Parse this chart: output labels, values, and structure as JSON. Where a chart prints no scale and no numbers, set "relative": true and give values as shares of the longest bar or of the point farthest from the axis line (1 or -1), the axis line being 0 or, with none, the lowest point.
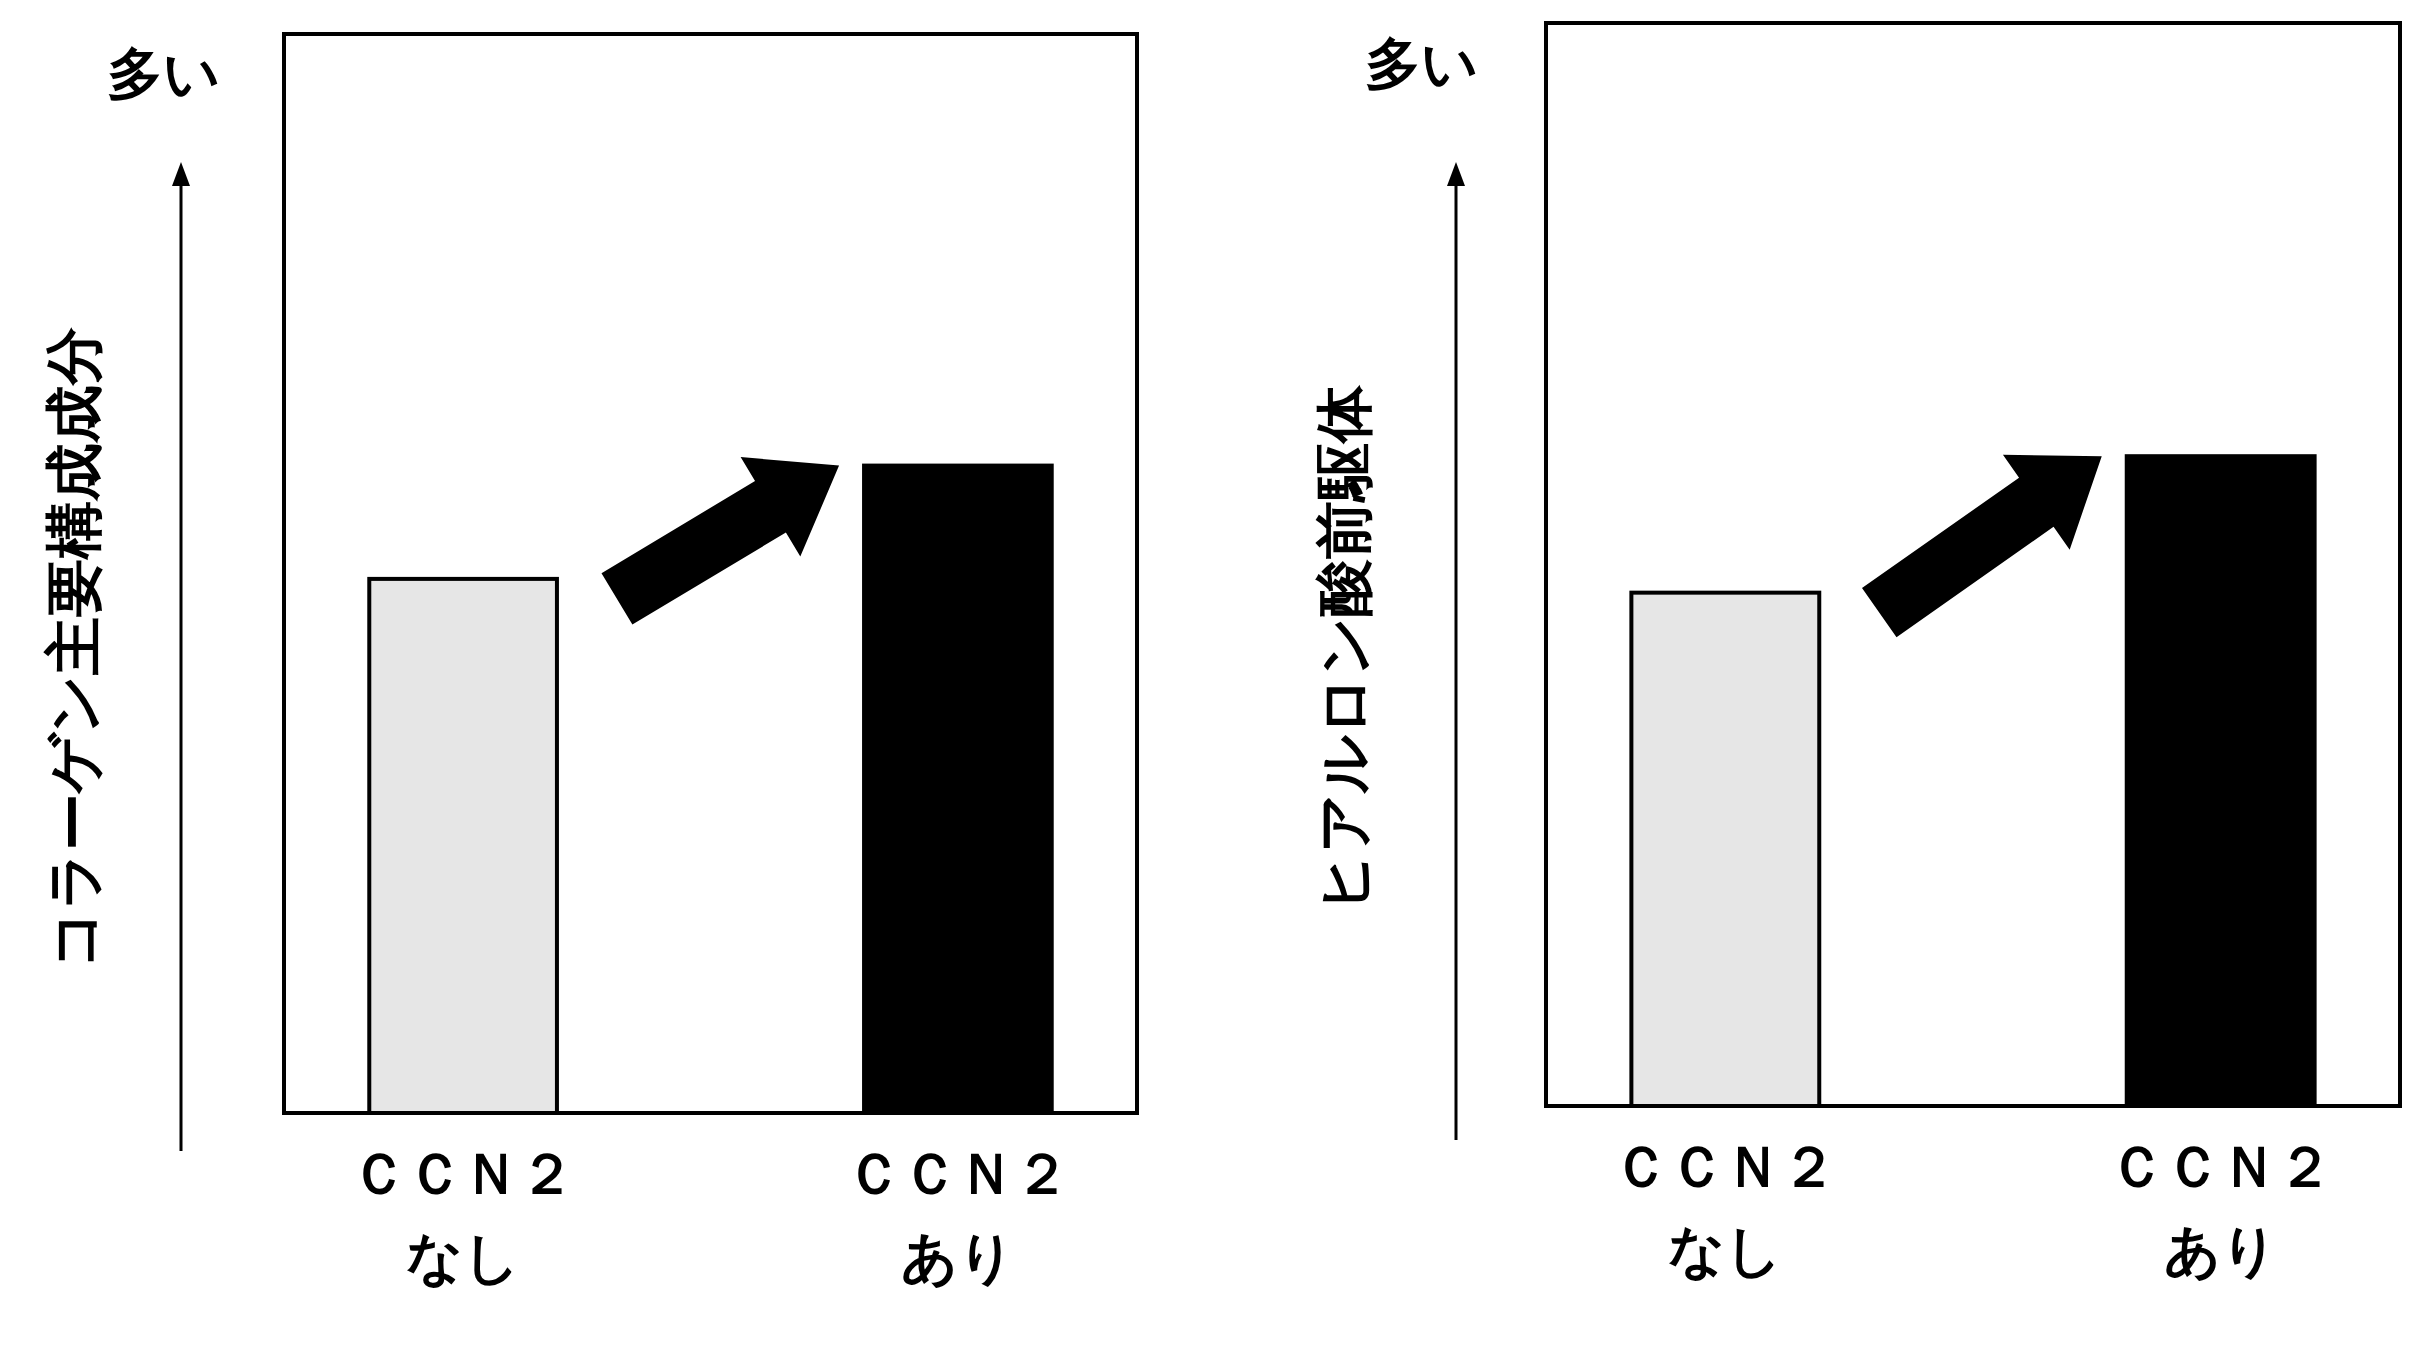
{
  "chart_data": [
    {
      "type": "bar",
      "relative": true,
      "ylabel": "コラーゲン主要構成成分",
      "annotations": [
        "多い"
      ],
      "categories": [
        "ＣＣＮ２なし",
        "ＣＣＮ２あり"
      ],
      "values": [
        0.825,
        1
      ],
      "colors": [
        "#e6e6e6",
        "#000000"
      ]
    },
    {
      "type": "bar",
      "relative": true,
      "ylabel": "ヒアルロン酸前駆体",
      "annotations": [
        "多い"
      ],
      "categories": [
        "ＣＣＮ２なし",
        "ＣＣＮ２あり"
      ],
      "values": [
        0.79,
        1
      ],
      "colors": [
        "#e6e6e6",
        "#000000"
      ]
    }
  ]
}
